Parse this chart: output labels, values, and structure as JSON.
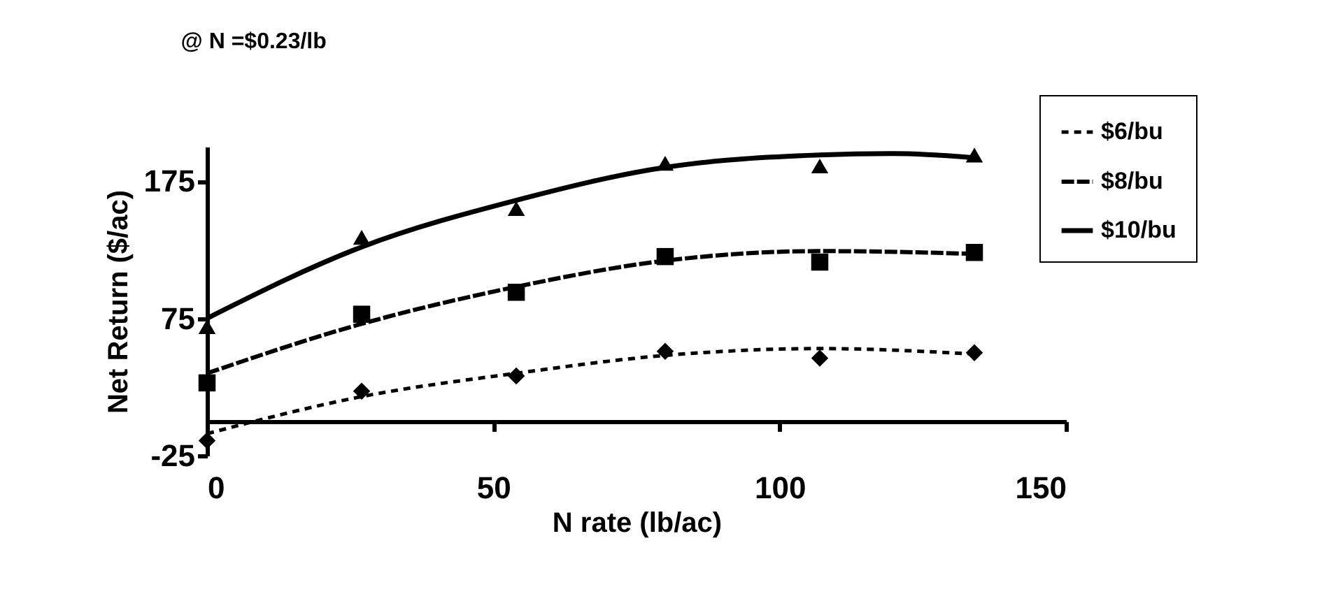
{
  "chart_data": {
    "type": "line",
    "title": "@ N =$0.23/lb",
    "xlabel": "N rate (lb/ac)",
    "ylabel": "Net Return ($/ac)",
    "xlim": [
      0,
      150
    ],
    "xticks": [
      0,
      50,
      100,
      150
    ],
    "ylim": [
      -25,
      200
    ],
    "yticks": [
      -25,
      75,
      175
    ],
    "grid": false,
    "legend": "top right",
    "series": [
      {
        "type": "scatter",
        "marker": "diamond",
        "color": "#000000",
        "x": [
          0,
          27,
          54,
          80,
          107,
          134
        ],
        "values": [
          -14,
          22,
          33,
          51,
          46,
          50
        ]
      },
      {
        "type": "scatter",
        "marker": "square",
        "color": "#000000",
        "x": [
          0,
          27,
          54,
          80,
          107,
          134
        ],
        "values": [
          28,
          78,
          94,
          120,
          116,
          123
        ]
      },
      {
        "type": "scatter",
        "marker": "triangle",
        "color": "#000000",
        "x": [
          0,
          27,
          54,
          80,
          107,
          134
        ],
        "values": [
          69,
          134,
          155,
          188,
          186,
          194
        ]
      },
      {
        "name": "$6/bu",
        "line_style": "dashed",
        "color": "#000000",
        "x": [
          0,
          27,
          54,
          80,
          107,
          134
        ],
        "values": [
          -9,
          18,
          35,
          48,
          53,
          49
        ]
      },
      {
        "name": "$8/bu",
        "line_style": "longdash",
        "color": "#000000",
        "x": [
          0,
          27,
          54,
          80,
          107,
          134
        ],
        "values": [
          35,
          71,
          98,
          117,
          124,
          122
        ]
      },
      {
        "name": "$10/bu",
        "line_style": "solid",
        "color": "#000000",
        "x": [
          0,
          27,
          54,
          80,
          107,
          120,
          134
        ],
        "values": [
          75,
          127,
          161,
          185,
          194,
          195,
          192
        ]
      }
    ]
  }
}
